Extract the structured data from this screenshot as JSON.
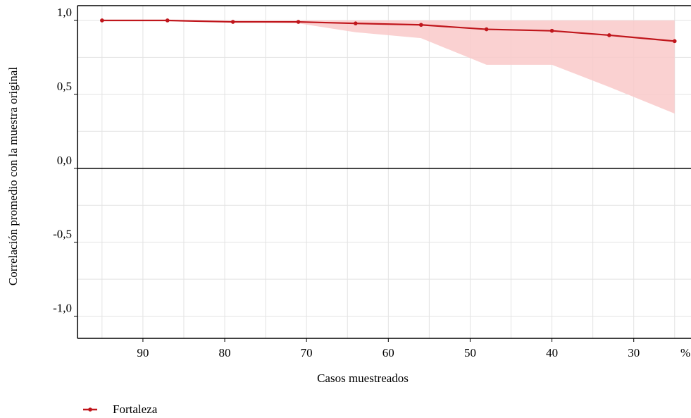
{
  "chart_data": {
    "type": "line",
    "title": "",
    "xlabel": "Casos muestreados",
    "ylabel": "Correlación promedio con la muestra original",
    "x_unit": "%",
    "x_reversed": true,
    "xlim": [
      98,
      23
    ],
    "ylim": [
      -1.15,
      1.1
    ],
    "x_ticks": [
      90,
      80,
      70,
      60,
      50,
      40,
      30
    ],
    "x_tick_labels": [
      "90",
      "80",
      "70",
      "60",
      "50",
      "40",
      "30"
    ],
    "y_ticks": [
      1.0,
      0.5,
      0.0,
      -0.5,
      -1.0
    ],
    "y_tick_labels": [
      "1,0",
      "0,5",
      "0,0",
      "-0,5",
      "-1,0"
    ],
    "grid": true,
    "legend_placement": "bottom-left",
    "series": [
      {
        "name": "Fortaleza",
        "color": "#c0161c",
        "band_color": "#f9c9c9",
        "x": [
          95,
          87,
          79,
          71,
          64,
          56,
          48,
          40,
          33,
          25
        ],
        "values": [
          1.0,
          1.0,
          0.99,
          0.99,
          0.98,
          0.97,
          0.94,
          0.93,
          0.9,
          0.86
        ],
        "lower": [
          1.0,
          1.0,
          0.99,
          0.98,
          0.92,
          0.88,
          0.7,
          0.7,
          0.55,
          0.37
        ],
        "upper": [
          1.0,
          1.0,
          1.0,
          1.0,
          1.0,
          1.0,
          1.0,
          1.0,
          1.0,
          1.0
        ]
      }
    ]
  }
}
